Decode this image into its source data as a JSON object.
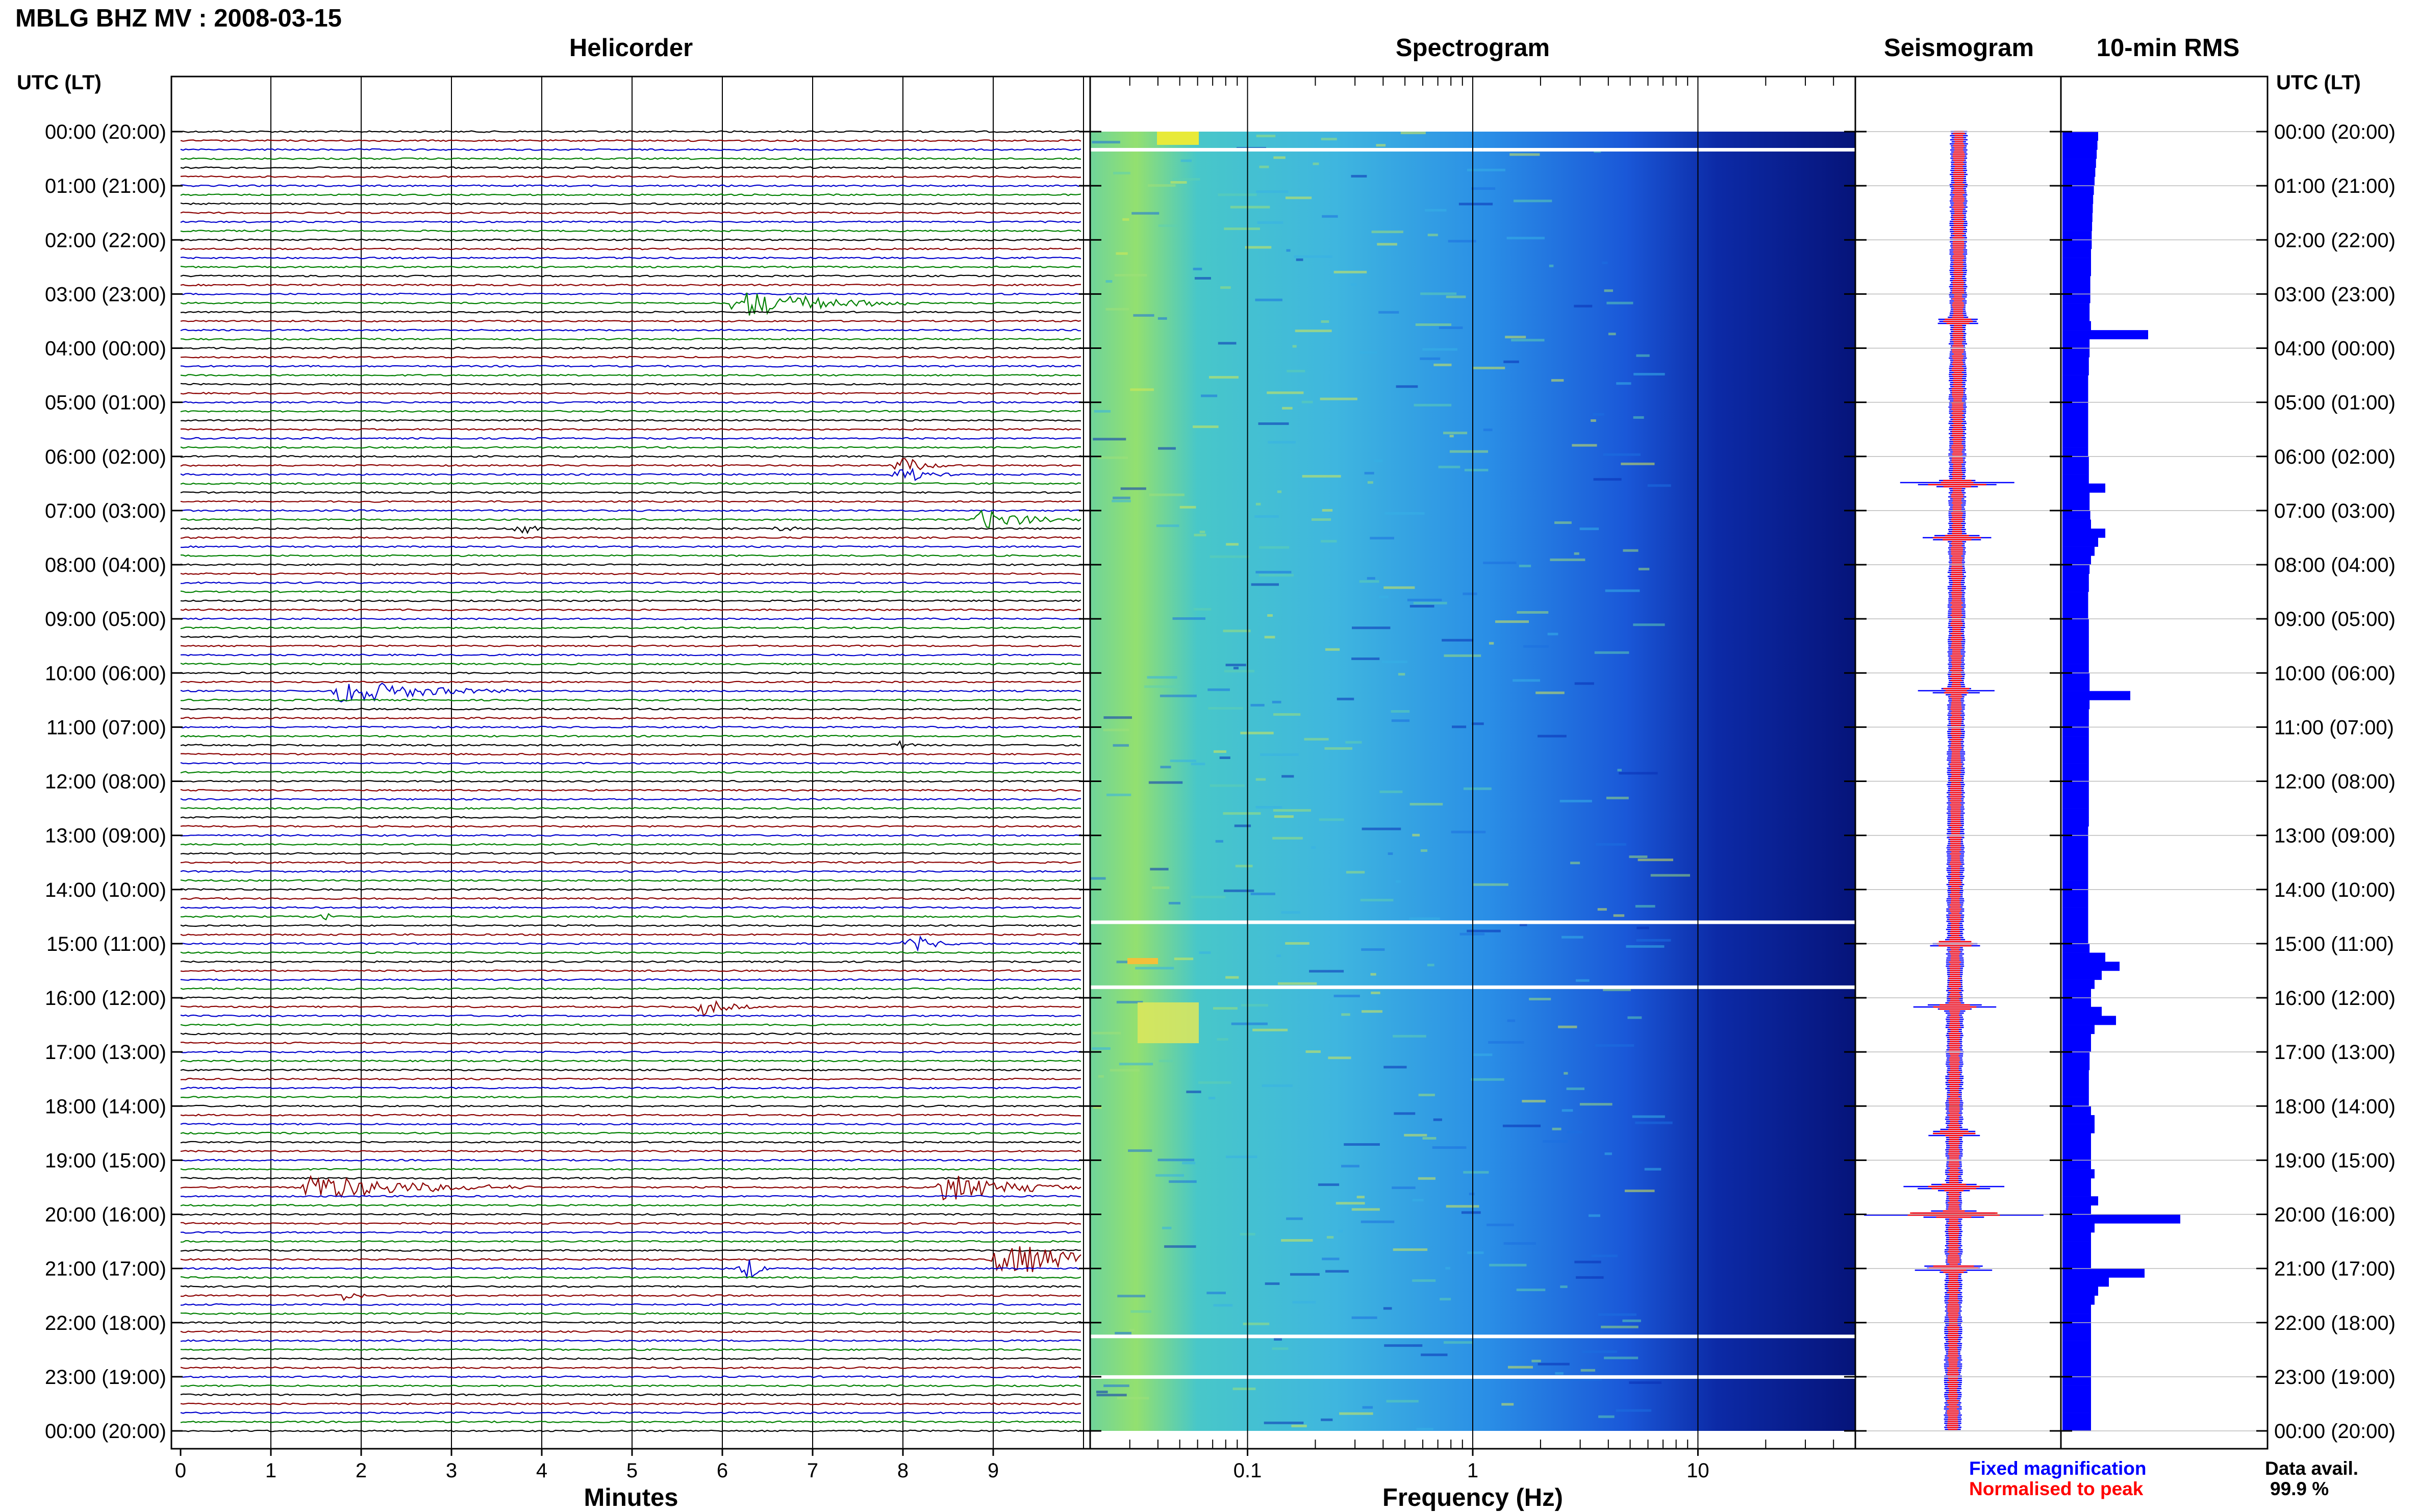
{
  "title": "MBLG BHZ MV : 2008-03-15",
  "panels": {
    "helicorder": "Helicorder",
    "spectrogram": "Spectrogram",
    "seismogram": "Seismogram",
    "rms": "10-min RMS"
  },
  "utc_header": "UTC (LT)",
  "xlabels": {
    "minutes": "Minutes",
    "frequency": "Frequency (Hz)"
  },
  "legend": {
    "fixed": "Fixed magnification",
    "normalised": "Normalised to peak",
    "fixed_color": "#0000ff",
    "normalised_color": "#ff0000"
  },
  "data_avail": {
    "label": "Data avail.",
    "value": "99.9 %"
  },
  "colors": {
    "trace_cycle": [
      "#000000",
      "#8b0000",
      "#0000cd",
      "#008000"
    ],
    "spectrogram_low": "#0a1a8c",
    "spectrogram_high": "#e8f040",
    "rms_bar": "#0000ff"
  },
  "chart_data": {
    "type": "heatmap",
    "time_ticks": [
      "00:00 (20:00)",
      "01:00 (21:00)",
      "02:00 (22:00)",
      "03:00 (23:00)",
      "04:00 (00:00)",
      "05:00 (01:00)",
      "06:00 (02:00)",
      "07:00 (03:00)",
      "08:00 (04:00)",
      "09:00 (05:00)",
      "10:00 (06:00)",
      "11:00 (07:00)",
      "12:00 (08:00)",
      "13:00 (09:00)",
      "14:00 (10:00)",
      "15:00 (11:00)",
      "16:00 (12:00)",
      "17:00 (13:00)",
      "18:00 (14:00)",
      "19:00 (15:00)",
      "20:00 (16:00)",
      "21:00 (17:00)",
      "22:00 (18:00)",
      "23:00 (19:00)",
      "00:00 (20:00)"
    ],
    "helicorder": {
      "xlabel": "Minutes",
      "x_ticks": [
        "0",
        "1",
        "2",
        "3",
        "4",
        "5",
        "6",
        "7",
        "8",
        "9"
      ],
      "xlim": [
        0,
        10
      ],
      "lines": 144,
      "events": [
        {
          "hour": 3.17,
          "minute": 6.2,
          "amp": 1.0,
          "dur": 2.0
        },
        {
          "hour": 6.25,
          "minute": 8.0,
          "amp": 0.6,
          "dur": 0.6
        },
        {
          "hour": 7.2,
          "minute": 8.9,
          "amp": 0.7,
          "dur": 1.2
        },
        {
          "hour": 7.33,
          "minute": 3.8,
          "amp": 0.4,
          "dur": 0.3
        },
        {
          "hour": 7.33,
          "minute": 6.7,
          "amp": 0.35,
          "dur": 0.2
        },
        {
          "hour": 10.33,
          "minute": 1.8,
          "amp": 0.9,
          "dur": 2.0
        },
        {
          "hour": 11.33,
          "minute": 8.0,
          "amp": 0.3,
          "dur": 0.3
        },
        {
          "hour": 14.5,
          "minute": 1.6,
          "amp": 0.3,
          "dur": 0.2
        },
        {
          "hour": 15.0,
          "minute": 8.1,
          "amp": 0.6,
          "dur": 0.6
        },
        {
          "hour": 16.17,
          "minute": 5.8,
          "amp": 0.6,
          "dur": 0.6
        },
        {
          "hour": 19.5,
          "minute": 1.4,
          "amp": 1.0,
          "dur": 2.5
        },
        {
          "hour": 19.5,
          "minute": 8.5,
          "amp": 1.2,
          "dur": 1.5
        },
        {
          "hour": 20.83,
          "minute": 9.1,
          "amp": 1.2,
          "dur": 2.0
        },
        {
          "hour": 21.0,
          "minute": 6.3,
          "amp": 0.7,
          "dur": 0.3
        },
        {
          "hour": 21.5,
          "minute": 1.8,
          "amp": 0.3,
          "dur": 0.6
        }
      ]
    },
    "spectrogram": {
      "xlabel": "Frequency (Hz)",
      "x_scale": "log",
      "xlim": [
        0.02,
        50
      ],
      "x_ticks": [
        "0.1",
        "1",
        "10"
      ],
      "gaps_hour": [
        0.33,
        14.6,
        15.8,
        22.25,
        23.0
      ]
    },
    "seismogram": {
      "series": [
        {
          "name": "Fixed magnification",
          "color": "#0000ff"
        },
        {
          "name": "Normalised to peak",
          "color": "#ff0000"
        }
      ],
      "spikes": [
        {
          "hour": 3.5,
          "width": 0.25
        },
        {
          "hour": 6.5,
          "width": 0.6
        },
        {
          "hour": 7.5,
          "width": 0.3
        },
        {
          "hour": 10.33,
          "width": 0.25
        },
        {
          "hour": 15.0,
          "width": 0.3
        },
        {
          "hour": 16.17,
          "width": 0.3
        },
        {
          "hour": 18.5,
          "width": 0.3
        },
        {
          "hour": 19.5,
          "width": 0.4
        },
        {
          "hour": 20.0,
          "width": 1.0
        },
        {
          "hour": 21.0,
          "width": 0.5
        }
      ]
    },
    "rms": {
      "xlabel": "10-min RMS",
      "values": [
        1.0,
        0.98,
        0.96,
        0.94,
        0.92,
        0.9,
        0.88,
        0.86,
        0.85,
        0.84,
        0.83,
        0.82,
        0.82,
        0.8,
        0.8,
        0.8,
        0.78,
        0.78,
        0.78,
        0.76,
        0.76,
        0.8,
        2.4,
        0.76,
        0.76,
        0.74,
        0.74,
        0.72,
        0.72,
        0.72,
        0.72,
        0.72,
        0.72,
        0.72,
        0.72,
        0.72,
        0.74,
        0.74,
        0.74,
        1.2,
        0.76,
        0.76,
        0.78,
        0.8,
        1.2,
        1.0,
        0.9,
        0.8,
        0.76,
        0.74,
        0.74,
        0.72,
        0.72,
        0.72,
        0.74,
        0.74,
        0.74,
        0.74,
        0.74,
        0.74,
        0.76,
        0.76,
        1.9,
        0.76,
        0.74,
        0.74,
        0.74,
        0.74,
        0.74,
        0.74,
        0.74,
        0.74,
        0.74,
        0.74,
        0.74,
        0.74,
        0.74,
        0.72,
        0.72,
        0.72,
        0.72,
        0.72,
        0.72,
        0.72,
        0.72,
        0.72,
        0.72,
        0.72,
        0.72,
        0.72,
        0.76,
        1.2,
        1.6,
        1.1,
        0.9,
        0.8,
        0.8,
        1.1,
        1.5,
        0.9,
        0.8,
        0.8,
        0.76,
        0.76,
        0.74,
        0.74,
        0.74,
        0.74,
        0.8,
        0.9,
        0.9,
        0.8,
        0.8,
        0.8,
        0.8,
        0.9,
        0.8,
        0.8,
        1.0,
        0.8,
        3.3,
        0.9,
        0.8,
        0.8,
        0.8,
        0.8,
        2.3,
        1.3,
        1.0,
        0.9,
        0.8,
        0.8,
        0.8,
        0.8,
        0.8,
        0.8,
        0.8,
        0.8,
        0.8,
        0.8,
        0.8,
        0.8,
        0.8,
        0.8
      ]
    }
  }
}
